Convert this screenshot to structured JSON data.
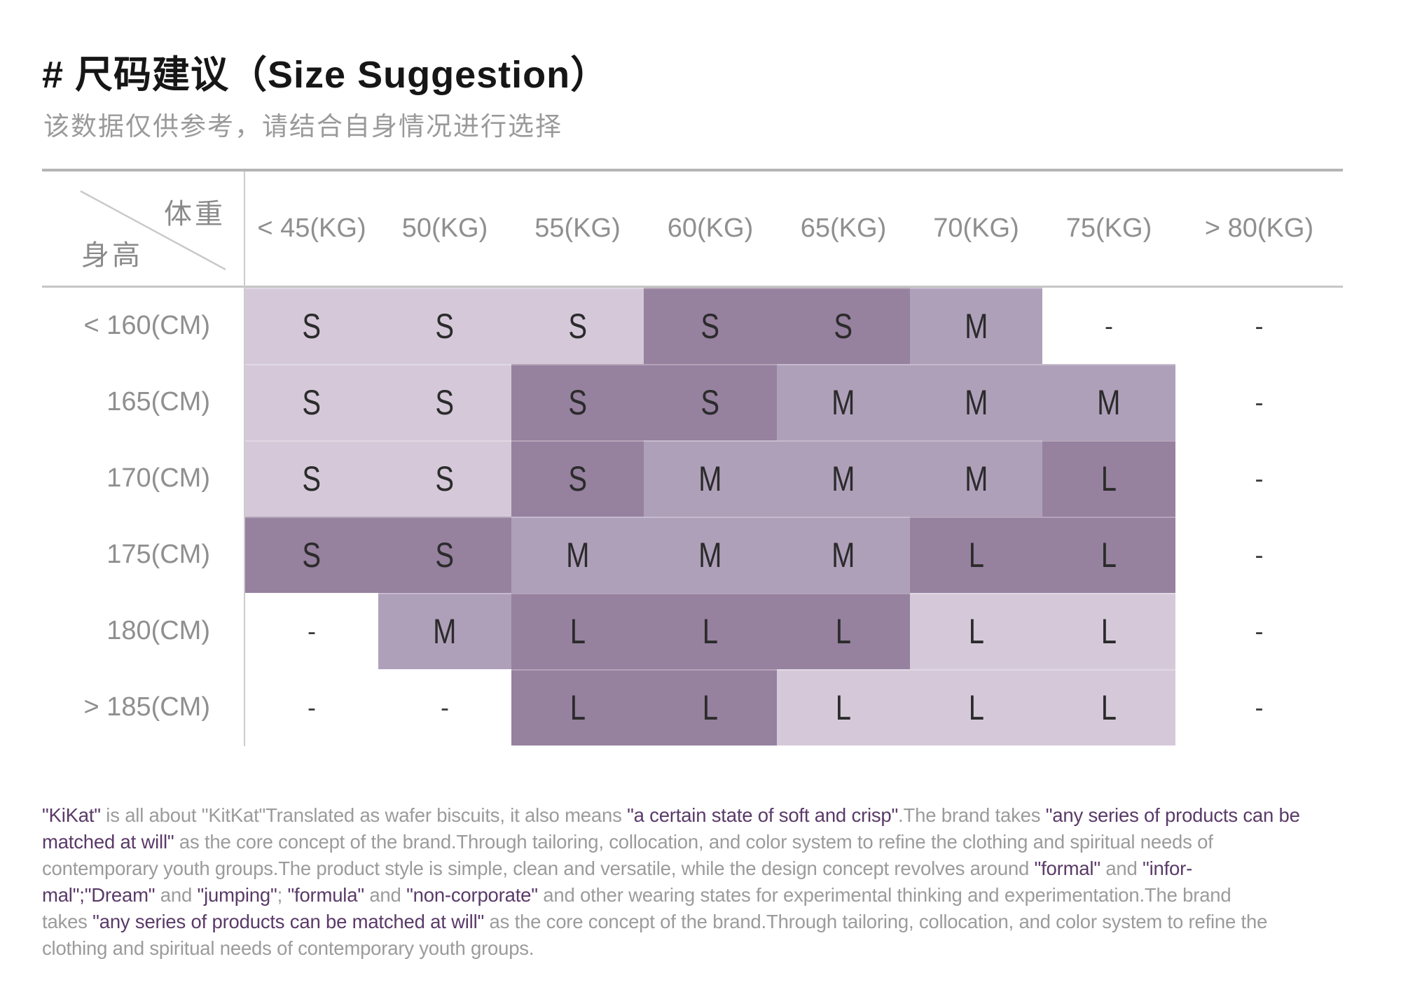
{
  "page": {
    "title": "# 尺码建议（Size Suggestion）",
    "subtitle": "该数据仅供参考，请结合自身情况进行选择"
  },
  "colors": {
    "cell_light": "#d5c9d9",
    "cell_medium": "#afa0ba",
    "cell_dark": "#96819f",
    "brand_purple": "#5a3a68",
    "text_gray": "#9b9b9b",
    "label_gray": "#8f8f8f"
  },
  "table": {
    "corner": {
      "weight_label": "体重",
      "height_label": "身高"
    },
    "columns": [
      "< 45(KG)",
      "50(KG)",
      "55(KG)",
      "60(KG)",
      "65(KG)",
      "70(KG)",
      "75(KG)",
      "> 80(KG)"
    ],
    "rows": [
      {
        "label": "< 160(CM)",
        "cells": [
          {
            "v": "S",
            "c": "l"
          },
          {
            "v": "S",
            "c": "l"
          },
          {
            "v": "S",
            "c": "l"
          },
          {
            "v": "S",
            "c": "d"
          },
          {
            "v": "S",
            "c": "d"
          },
          {
            "v": "M",
            "c": "m"
          },
          {
            "v": "-",
            "c": "w"
          },
          {
            "v": "-",
            "c": "w"
          }
        ]
      },
      {
        "label": "165(CM)",
        "cells": [
          {
            "v": "S",
            "c": "l"
          },
          {
            "v": "S",
            "c": "l"
          },
          {
            "v": "S",
            "c": "d"
          },
          {
            "v": "S",
            "c": "d"
          },
          {
            "v": "M",
            "c": "m"
          },
          {
            "v": "M",
            "c": "m"
          },
          {
            "v": "M",
            "c": "m"
          },
          {
            "v": "-",
            "c": "w"
          }
        ]
      },
      {
        "label": "170(CM)",
        "cells": [
          {
            "v": "S",
            "c": "l"
          },
          {
            "v": "S",
            "c": "l"
          },
          {
            "v": "S",
            "c": "d"
          },
          {
            "v": "M",
            "c": "m"
          },
          {
            "v": "M",
            "c": "m"
          },
          {
            "v": "M",
            "c": "m"
          },
          {
            "v": "L",
            "c": "d"
          },
          {
            "v": "-",
            "c": "w"
          }
        ]
      },
      {
        "label": "175(CM)",
        "cells": [
          {
            "v": "S",
            "c": "d"
          },
          {
            "v": "S",
            "c": "d"
          },
          {
            "v": "M",
            "c": "m"
          },
          {
            "v": "M",
            "c": "m"
          },
          {
            "v": "M",
            "c": "m"
          },
          {
            "v": "L",
            "c": "d"
          },
          {
            "v": "L",
            "c": "d"
          },
          {
            "v": "-",
            "c": "w"
          }
        ]
      },
      {
        "label": "180(CM)",
        "cells": [
          {
            "v": "-",
            "c": "w"
          },
          {
            "v": "M",
            "c": "m"
          },
          {
            "v": "L",
            "c": "d"
          },
          {
            "v": "L",
            "c": "d"
          },
          {
            "v": "L",
            "c": "d"
          },
          {
            "v": "L",
            "c": "l"
          },
          {
            "v": "L",
            "c": "l"
          },
          {
            "v": "-",
            "c": "w"
          }
        ]
      },
      {
        "label": "> 185(CM)",
        "cells": [
          {
            "v": "-",
            "c": "w"
          },
          {
            "v": "-",
            "c": "w"
          },
          {
            "v": "L",
            "c": "d"
          },
          {
            "v": "L",
            "c": "d"
          },
          {
            "v": "L",
            "c": "l"
          },
          {
            "v": "L",
            "c": "l"
          },
          {
            "v": "L",
            "c": "l"
          },
          {
            "v": "-",
            "c": "w"
          }
        ]
      }
    ]
  },
  "brand_text": {
    "lines": [
      [
        {
          "t": "\"KiKat\"",
          "p": 1
        },
        {
          "t": " is all about \"KitKat\"Translated as wafer biscuits, it also means ",
          "p": 0
        },
        {
          "t": "\"a certain state of soft and crisp\"",
          "p": 1
        },
        {
          "t": ".The brand takes ",
          "p": 0
        },
        {
          "t": "\"any series of products can be",
          "p": 1
        }
      ],
      [
        {
          "t": "matched at will\"",
          "p": 1
        },
        {
          "t": " as the core concept of the brand.Through tailoring, collocation, and color system to refine the clothing and spiritual needs of",
          "p": 0
        }
      ],
      [
        {
          "t": "contemporary youth groups.The product style is simple, clean and versatile, while the design concept revolves around ",
          "p": 0
        },
        {
          "t": "\"formal\"",
          "p": 1
        },
        {
          "t": " and ",
          "p": 0
        },
        {
          "t": "\"infor-",
          "p": 1
        }
      ],
      [
        {
          "t": "mal\";\"Dream\"",
          "p": 1
        },
        {
          "t": " and ",
          "p": 0
        },
        {
          "t": "\"jumping\"",
          "p": 1
        },
        {
          "t": "; ",
          "p": 0
        },
        {
          "t": "\"formula\"",
          "p": 1
        },
        {
          "t": " and ",
          "p": 0
        },
        {
          "t": "\"non-corporate\"",
          "p": 1
        },
        {
          "t": " and other wearing states for experimental thinking and experimentation.The brand",
          "p": 0
        }
      ],
      [
        {
          "t": "takes ",
          "p": 0
        },
        {
          "t": "\"any series of products can be matched at will\"",
          "p": 1
        },
        {
          "t": " as the core concept of the brand.Through tailoring, collocation, and color system to refine the",
          "p": 0
        }
      ],
      [
        {
          "t": "clothing and spiritual needs of contemporary youth groups.",
          "p": 0
        }
      ]
    ]
  }
}
